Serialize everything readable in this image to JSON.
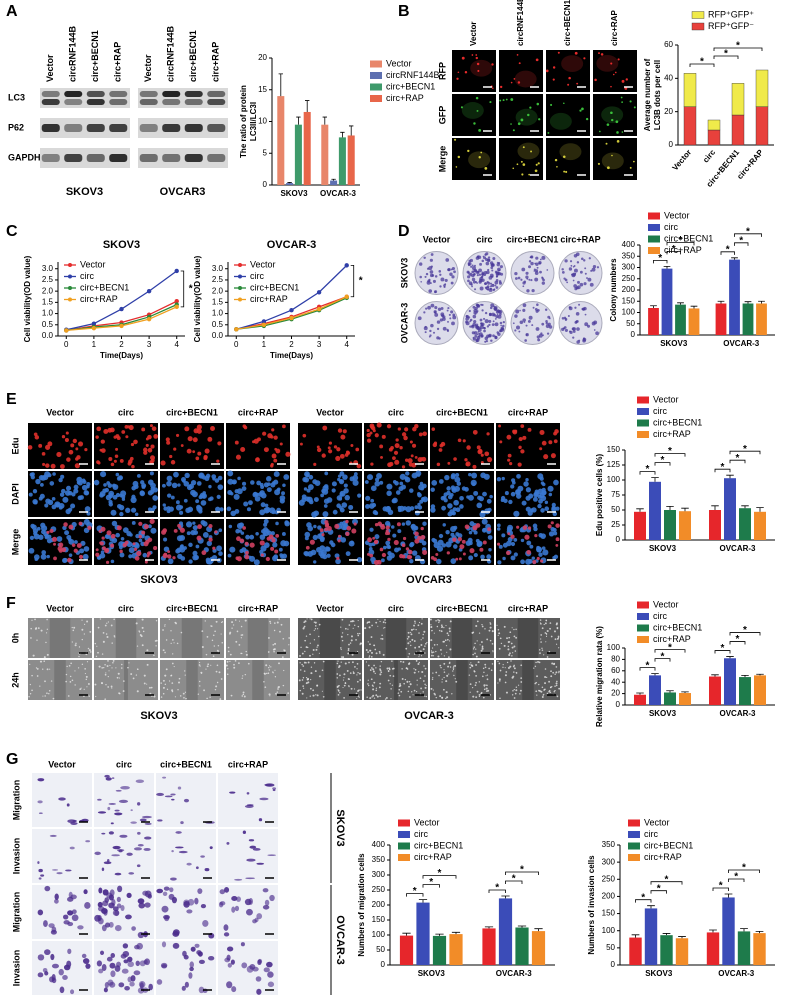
{
  "panel_labels": [
    "A",
    "B",
    "C",
    "D",
    "E",
    "F",
    "G"
  ],
  "image_grids": [
    {
      "columns": [
        "Vector",
        "circRNF144B",
        "circ+BECN1",
        "circ+RAP",
        "Vector",
        "circRNF144B",
        "circ+BECN1",
        "circ+RAP"
      ],
      "rows": [
        "LC3",
        "P62",
        "GAPDH"
      ],
      "groups": [
        "SKOV3",
        "OVCAR3"
      ]
    },
    {
      "columns": [
        "Vector",
        "circRNF144B",
        "circ+BECN1",
        "circ+RAP"
      ],
      "rows": [
        "RFP",
        "GFP",
        "Merge"
      ]
    },
    {
      "columns": [
        "Vector",
        "circ",
        "circ+BECN1",
        "circ+RAP"
      ],
      "rows": [
        "SKOV3",
        "OVCAR-3"
      ]
    },
    {
      "columns": [
        "Vector",
        "circ",
        "circ+BECN1",
        "circ+RAP",
        "Vector",
        "circ",
        "circ+BECN1",
        "circ+RAP"
      ],
      "rows": [
        "Edu",
        "DAPI",
        "Merge"
      ],
      "groups": [
        "SKOV3",
        "OVCAR3"
      ]
    },
    {
      "columns": [
        "Vector",
        "circ",
        "circ+BECN1",
        "circ+RAP",
        "Vector",
        "circ",
        "circ+BECN1",
        "circ+RAP"
      ],
      "rows": [
        "0h",
        "24h"
      ],
      "groups": [
        "SKOV3",
        "OVCAR-3"
      ]
    },
    {
      "columns": [
        "Vector",
        "circ",
        "circ+BECN1",
        "circ+RAP"
      ],
      "rows": [
        "Migration",
        "Invasion",
        "Migration",
        "Invasion"
      ],
      "groups": [
        "SKOV3",
        "OVCAR-3"
      ]
    }
  ],
  "chart_data": [
    {
      "type": "bar",
      "ylabel": [
        "The ratio of protein",
        "LC3II/LC3I"
      ],
      "categories": [
        "SKOV3",
        "OVCAR-3"
      ],
      "ylim": [
        0,
        20
      ],
      "yticks": [
        0,
        5,
        10,
        15,
        20
      ],
      "legend": "right",
      "series": [
        {
          "name": "Vector",
          "color": "#e8866a",
          "values": [
            14,
            9.5
          ],
          "errors": [
            3.5,
            1.2
          ]
        },
        {
          "name": "circRNF144B",
          "color": "#5d6fb0",
          "values": [
            0.3,
            0.7
          ],
          "errors": [
            0.1,
            0.2
          ]
        },
        {
          "name": "circ+BECN1",
          "color": "#3e9a6b",
          "values": [
            9.5,
            7.5
          ],
          "errors": [
            1.2,
            0.8
          ]
        },
        {
          "name": "circ+RAP",
          "color": "#e8664a",
          "values": [
            11.5,
            7.8
          ],
          "errors": [
            1.8,
            1.5
          ]
        }
      ]
    },
    {
      "type": "bar",
      "stacked": true,
      "ylabel": [
        "Average number of",
        "LC3B dots per cell"
      ],
      "categories": [
        "Vector",
        "circ",
        "circ+BECN1",
        "circ+RAP"
      ],
      "ylim": [
        0,
        60
      ],
      "yticks": [
        0,
        20,
        40,
        60
      ],
      "legend": "top",
      "series": [
        {
          "name": "RFP⁺GFP⁻",
          "color": "#e8413c",
          "values": [
            23,
            9,
            18,
            23
          ]
        },
        {
          "name": "RFP⁺GFP⁺",
          "color": "#f0ea4a",
          "values": [
            20,
            6,
            19,
            22
          ]
        }
      ],
      "significance": [
        {
          "categories": [
            "Vector",
            "circ"
          ],
          "label": "*"
        },
        {
          "categories": [
            "circ",
            "circ+BECN1"
          ],
          "label": "*"
        },
        {
          "categories": [
            "circ",
            "circ+RAP"
          ],
          "label": "*"
        }
      ]
    },
    {
      "type": "line",
      "title": "SKOV3",
      "xlabel": "Time(Days)",
      "ylabel": "Cell viability(OD value)",
      "x": [
        0,
        1,
        2,
        3,
        4
      ],
      "xlim": [
        -0.3,
        4.3
      ],
      "xticks": [
        0,
        1,
        2,
        3,
        4
      ],
      "ylim": [
        0,
        3.3
      ],
      "yticks": [
        {
          "value": 0,
          "label": "0.0"
        },
        {
          "value": 0.5,
          "label": "0.5"
        },
        {
          "value": 1,
          "label": "1.0"
        },
        {
          "value": 1.5,
          "label": "1.5"
        },
        {
          "value": 2,
          "label": "2.0"
        },
        {
          "value": 2.5,
          "label": "2.5"
        },
        {
          "value": 3,
          "label": "3.0"
        }
      ],
      "legend": "top-left",
      "series": [
        {
          "name": "Vector",
          "color": "#e52d2d",
          "values": [
            0.25,
            0.45,
            0.6,
            0.95,
            1.55
          ]
        },
        {
          "name": "circ",
          "color": "#2f3fa8",
          "values": [
            0.28,
            0.55,
            1.2,
            2.0,
            2.9
          ]
        },
        {
          "name": "circ+BECN1",
          "color": "#2a8a3a",
          "values": [
            0.25,
            0.4,
            0.5,
            0.85,
            1.4
          ]
        },
        {
          "name": "circ+RAP",
          "color": "#f0a020",
          "values": [
            0.25,
            0.35,
            0.45,
            0.75,
            1.3
          ]
        }
      ],
      "significance": [
        {
          "series": [
            "circ",
            "circ+RAP"
          ],
          "label": "*"
        }
      ]
    },
    {
      "type": "line",
      "title": "OVCAR-3",
      "xlabel": "Time(Days)",
      "ylabel": "Cell viability(OD value)",
      "x": [
        0,
        1,
        2,
        3,
        4
      ],
      "xlim": [
        -0.3,
        4.3
      ],
      "xticks": [
        0,
        1,
        2,
        3,
        4
      ],
      "ylim": [
        0,
        3.3
      ],
      "yticks": [
        {
          "value": 0,
          "label": "0.0"
        },
        {
          "value": 0.5,
          "label": "0.5"
        },
        {
          "value": 1,
          "label": "1.0"
        },
        {
          "value": 1.5,
          "label": "1.5"
        },
        {
          "value": 2,
          "label": "2.0"
        },
        {
          "value": 2.5,
          "label": "2.5"
        },
        {
          "value": 3,
          "label": "3.0"
        }
      ],
      "legend": "top-left",
      "series": [
        {
          "name": "Vector",
          "color": "#e52d2d",
          "values": [
            0.3,
            0.55,
            0.85,
            1.3,
            1.75
          ]
        },
        {
          "name": "circ",
          "color": "#2f3fa8",
          "values": [
            0.3,
            0.65,
            1.15,
            1.95,
            3.15
          ]
        },
        {
          "name": "circ+BECN1",
          "color": "#2a8a3a",
          "values": [
            0.3,
            0.45,
            0.75,
            1.15,
            1.7
          ]
        },
        {
          "name": "circ+RAP",
          "color": "#f0a020",
          "values": [
            0.3,
            0.5,
            0.8,
            1.2,
            1.75
          ]
        }
      ],
      "significance": [
        {
          "series": [
            "circ",
            "circ+RAP"
          ],
          "label": "*"
        }
      ]
    },
    {
      "type": "bar",
      "ylabel": "Colony numbers",
      "categories": [
        "SKOV3",
        "OVCAR-3"
      ],
      "ylim": [
        0,
        400
      ],
      "yticks": [
        0,
        50,
        100,
        150,
        200,
        250,
        300,
        350,
        400
      ],
      "legend": "top-left",
      "series": [
        {
          "name": "Vector",
          "color": "#e6262b",
          "values": [
            120,
            140
          ],
          "errors": [
            10,
            10
          ]
        },
        {
          "name": "circ",
          "color": "#3b4cb8",
          "values": [
            295,
            335
          ],
          "errors": [
            10,
            8
          ]
        },
        {
          "name": "circ+BECN1",
          "color": "#1e7b4b",
          "values": [
            135,
            140
          ],
          "errors": [
            8,
            8
          ]
        },
        {
          "name": "circ+RAP",
          "color": "#f28c28",
          "values": [
            118,
            140
          ],
          "errors": [
            10,
            10
          ]
        }
      ],
      "significance": [
        {
          "category": "SKOV3",
          "series": [
            "Vector",
            "circ"
          ],
          "label": "*"
        },
        {
          "category": "SKOV3",
          "series": [
            "circ",
            "circ+BECN1"
          ],
          "label": "*"
        },
        {
          "category": "SKOV3",
          "series": [
            "circ",
            "circ+RAP"
          ],
          "label": "*"
        },
        {
          "category": "OVCAR-3",
          "series": [
            "Vector",
            "circ"
          ],
          "label": "*"
        },
        {
          "category": "OVCAR-3",
          "series": [
            "circ",
            "circ+BECN1"
          ],
          "label": "*"
        },
        {
          "category": "OVCAR-3",
          "series": [
            "circ",
            "circ+RAP"
          ],
          "label": "*"
        }
      ]
    },
    {
      "type": "bar",
      "ylabel": "Edu positive cells (%)",
      "categories": [
        "SKOV3",
        "OVCAR-3"
      ],
      "ylim": [
        0,
        150
      ],
      "yticks": [
        0,
        25,
        50,
        75,
        100,
        125,
        150
      ],
      "legend": "top-left",
      "series": [
        {
          "name": "Vector",
          "color": "#e6262b",
          "values": [
            47,
            50
          ],
          "errors": [
            5,
            7
          ]
        },
        {
          "name": "circ",
          "color": "#3b4cb8",
          "values": [
            97,
            103
          ],
          "errors": [
            7,
            5
          ]
        },
        {
          "name": "circ+BECN1",
          "color": "#1e7b4b",
          "values": [
            50,
            53
          ],
          "errors": [
            6,
            4
          ]
        },
        {
          "name": "circ+RAP",
          "color": "#f28c28",
          "values": [
            48,
            47
          ],
          "errors": [
            5,
            7
          ]
        }
      ],
      "significance": [
        {
          "category": "SKOV3",
          "series": [
            "Vector",
            "circ"
          ],
          "label": "*"
        },
        {
          "category": "SKOV3",
          "series": [
            "circ",
            "circ+BECN1"
          ],
          "label": "*"
        },
        {
          "category": "SKOV3",
          "series": [
            "circ",
            "circ+RAP"
          ],
          "label": "*"
        },
        {
          "category": "OVCAR-3",
          "series": [
            "Vector",
            "circ"
          ],
          "label": "*"
        },
        {
          "category": "OVCAR-3",
          "series": [
            "circ",
            "circ+BECN1"
          ],
          "label": "*"
        },
        {
          "category": "OVCAR-3",
          "series": [
            "circ",
            "circ+RAP"
          ],
          "label": "*"
        }
      ]
    },
    {
      "type": "bar",
      "ylabel": "Relative migration rata (%)",
      "categories": [
        "SKOV3",
        "OVCAR-3"
      ],
      "ylim": [
        0,
        100
      ],
      "yticks": [
        0,
        20,
        40,
        60,
        80,
        100
      ],
      "legend": "top-left",
      "series": [
        {
          "name": "Vector",
          "color": "#e6262b",
          "values": [
            18,
            50
          ],
          "errors": [
            3,
            3
          ]
        },
        {
          "name": "circ",
          "color": "#3b4cb8",
          "values": [
            52,
            82
          ],
          "errors": [
            3,
            3
          ]
        },
        {
          "name": "circ+BECN1",
          "color": "#1e7b4b",
          "values": [
            22,
            49
          ],
          "errors": [
            3,
            3
          ]
        },
        {
          "name": "circ+RAP",
          "color": "#f28c28",
          "values": [
            21,
            52
          ],
          "errors": [
            2,
            2
          ]
        }
      ],
      "significance": [
        {
          "category": "SKOV3",
          "series": [
            "Vector",
            "circ"
          ],
          "label": "*"
        },
        {
          "category": "SKOV3",
          "series": [
            "circ",
            "circ+BECN1"
          ],
          "label": "*"
        },
        {
          "category": "SKOV3",
          "series": [
            "circ",
            "circ+RAP"
          ],
          "label": "*"
        },
        {
          "category": "OVCAR-3",
          "series": [
            "Vector",
            "circ"
          ],
          "label": "*"
        },
        {
          "category": "OVCAR-3",
          "series": [
            "circ",
            "circ+BECN1"
          ],
          "label": "*"
        },
        {
          "category": "OVCAR-3",
          "series": [
            "circ",
            "circ+RAP"
          ],
          "label": "*"
        }
      ]
    },
    {
      "type": "bar",
      "ylabel": "Numbers of migration cells",
      "categories": [
        "SKOV3",
        "OVCAR-3"
      ],
      "ylim": [
        0,
        400
      ],
      "yticks": [
        0,
        50,
        100,
        150,
        200,
        250,
        300,
        350,
        400
      ],
      "legend": "top-left",
      "series": [
        {
          "name": "Vector",
          "color": "#e6262b",
          "values": [
            98,
            122
          ],
          "errors": [
            8,
            5
          ]
        },
        {
          "name": "circ",
          "color": "#3b4cb8",
          "values": [
            208,
            222
          ],
          "errors": [
            10,
            8
          ]
        },
        {
          "name": "circ+BECN1",
          "color": "#1e7b4b",
          "values": [
            97,
            125
          ],
          "errors": [
            6,
            5
          ]
        },
        {
          "name": "circ+RAP",
          "color": "#f28c28",
          "values": [
            103,
            113
          ],
          "errors": [
            6,
            8
          ]
        }
      ],
      "significance": [
        {
          "category": "SKOV3",
          "series": [
            "Vector",
            "circ"
          ],
          "label": "*"
        },
        {
          "category": "SKOV3",
          "series": [
            "circ",
            "circ+BECN1"
          ],
          "label": "*"
        },
        {
          "category": "SKOV3",
          "series": [
            "circ",
            "circ+RAP"
          ],
          "label": "*"
        },
        {
          "category": "OVCAR-3",
          "series": [
            "Vector",
            "circ"
          ],
          "label": "*"
        },
        {
          "category": "OVCAR-3",
          "series": [
            "circ",
            "circ+BECN1"
          ],
          "label": "*"
        },
        {
          "category": "OVCAR-3",
          "series": [
            "circ",
            "circ+RAP"
          ],
          "label": "*"
        }
      ]
    },
    {
      "type": "bar",
      "ylabel": "Numbers of invasion cells",
      "categories": [
        "SKOV3",
        "OVCAR-3"
      ],
      "ylim": [
        0,
        350
      ],
      "yticks": [
        0,
        50,
        100,
        150,
        200,
        250,
        300,
        350
      ],
      "legend": "top-left",
      "series": [
        {
          "name": "Vector",
          "color": "#e6262b",
          "values": [
            80,
            95
          ],
          "errors": [
            8,
            7
          ]
        },
        {
          "name": "circ",
          "color": "#3b4cb8",
          "values": [
            165,
            197
          ],
          "errors": [
            8,
            10
          ]
        },
        {
          "name": "circ+BECN1",
          "color": "#1e7b4b",
          "values": [
            87,
            98
          ],
          "errors": [
            5,
            8
          ]
        },
        {
          "name": "circ+RAP",
          "color": "#f28c28",
          "values": [
            78,
            93
          ],
          "errors": [
            5,
            5
          ]
        }
      ],
      "significance": [
        {
          "category": "SKOV3",
          "series": [
            "Vector",
            "circ"
          ],
          "label": "*"
        },
        {
          "category": "SKOV3",
          "series": [
            "circ",
            "circ+BECN1"
          ],
          "label": "*"
        },
        {
          "category": "SKOV3",
          "series": [
            "circ",
            "circ+RAP"
          ],
          "label": "*"
        },
        {
          "category": "OVCAR-3",
          "series": [
            "Vector",
            "circ"
          ],
          "label": "*"
        },
        {
          "category": "OVCAR-3",
          "series": [
            "circ",
            "circ+BECN1"
          ],
          "label": "*"
        },
        {
          "category": "OVCAR-3",
          "series": [
            "circ",
            "circ+RAP"
          ],
          "label": "*"
        }
      ]
    }
  ]
}
